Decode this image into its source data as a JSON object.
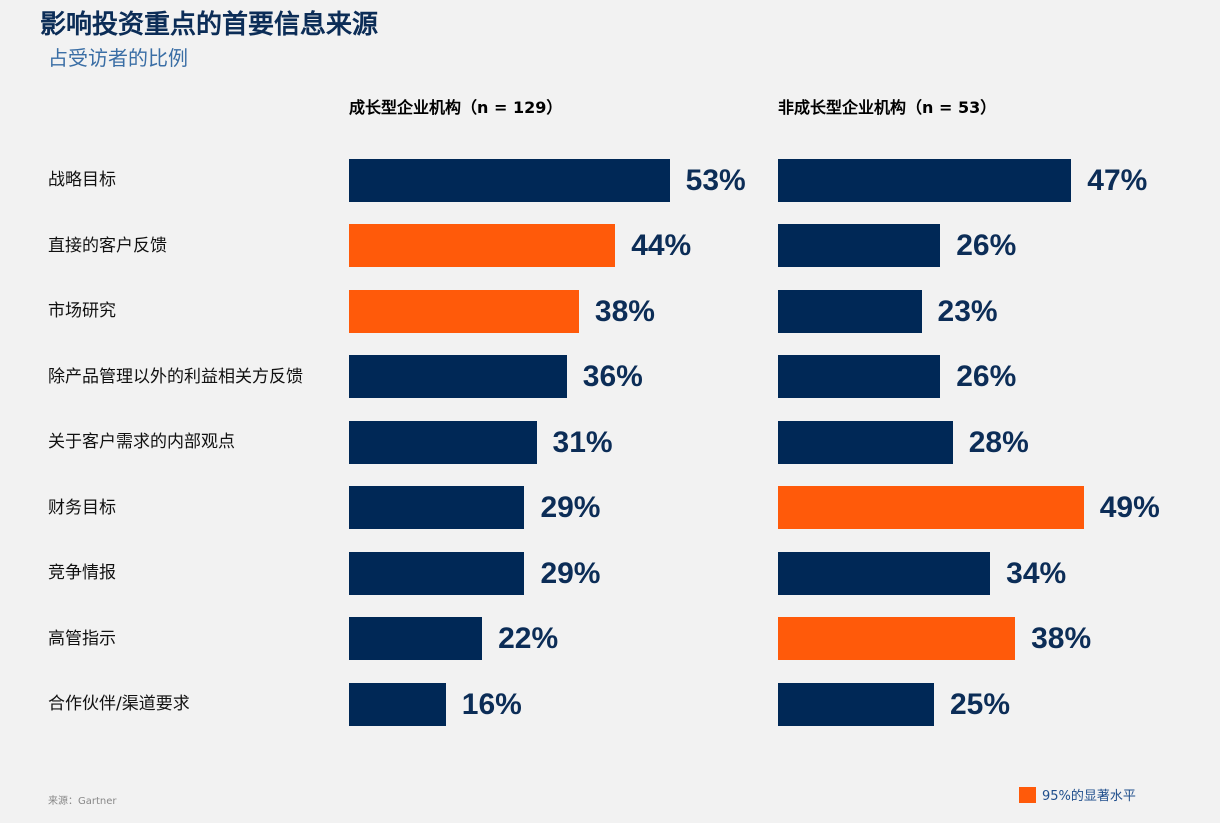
{
  "colors": {
    "normal": "#002856",
    "significant": "#ff5a0a"
  },
  "chart_data": {
    "type": "bar",
    "title": "影响投资重点的首要信息来源",
    "subtitle": "占受访者的比例",
    "categories": [
      "战略目标",
      "直接的客户反馈",
      "市场研究",
      "除产品管理以外的利益相关方反馈",
      "关于客户需求的内部观点",
      "财务目标",
      "竞争情报",
      "高管指示",
      "合作伙伴/渠道要求"
    ],
    "series": [
      {
        "name": "成长型企业机构（n = 129）",
        "values": [
          53,
          44,
          38,
          36,
          31,
          29,
          29,
          22,
          16
        ],
        "significant": [
          false,
          true,
          true,
          false,
          false,
          false,
          false,
          false,
          false
        ]
      },
      {
        "name": "非成长型企业机构（n = 53）",
        "values": [
          47,
          26,
          23,
          26,
          28,
          49,
          34,
          38,
          25
        ],
        "significant": [
          false,
          false,
          false,
          false,
          false,
          true,
          false,
          true,
          false
        ]
      }
    ],
    "unit": "%",
    "legend": "95%的显著水平",
    "legend_position": "bottom-right"
  },
  "source": "来源：Gartner"
}
